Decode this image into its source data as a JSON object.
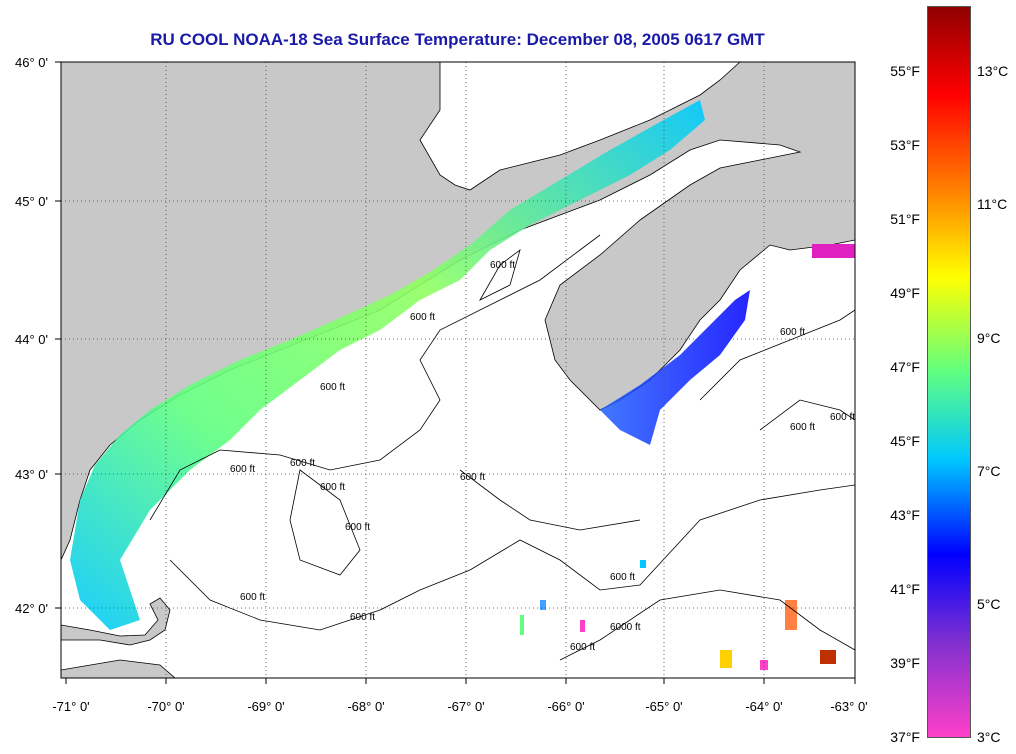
{
  "title": "RU COOL  NOAA-18  Sea Surface Temperature:  December 08, 2005 0617 GMT",
  "map": {
    "lon_range": [
      -71.0,
      -63.0
    ],
    "lat_range": [
      41.5,
      46.0
    ],
    "longitude_ticks": [
      "-71° 0'",
      "-70° 0'",
      "-69° 0'",
      "-68° 0'",
      "-67° 0'",
      "-66° 0'",
      "-65° 0'",
      "-64° 0'",
      "-63° 0'"
    ],
    "latitude_ticks": [
      "46° 0'",
      "45° 0'",
      "44° 0'",
      "43° 0'",
      "42° 0'"
    ],
    "grid": "dotted",
    "land_color": "#c8c8c8",
    "no_data_color": "#ffffff",
    "contour_label": "600 ft",
    "contour_label_alt": "6000 ft"
  },
  "colorbar": {
    "fahrenheit": [
      "55°F",
      "53°F",
      "51°F",
      "49°F",
      "47°F",
      "45°F",
      "43°F",
      "41°F",
      "39°F",
      "37°F"
    ],
    "celsius": [
      "13°C",
      "11°C",
      "9°C",
      "7°C",
      "5°C",
      "3°C"
    ],
    "range_c": [
      3,
      14
    ],
    "colors": [
      "#ff40c8",
      "#8030d0",
      "#0000ff",
      "#00c8ff",
      "#60ff80",
      "#ffff00",
      "#ff8000",
      "#ff0000",
      "#900000"
    ]
  }
}
